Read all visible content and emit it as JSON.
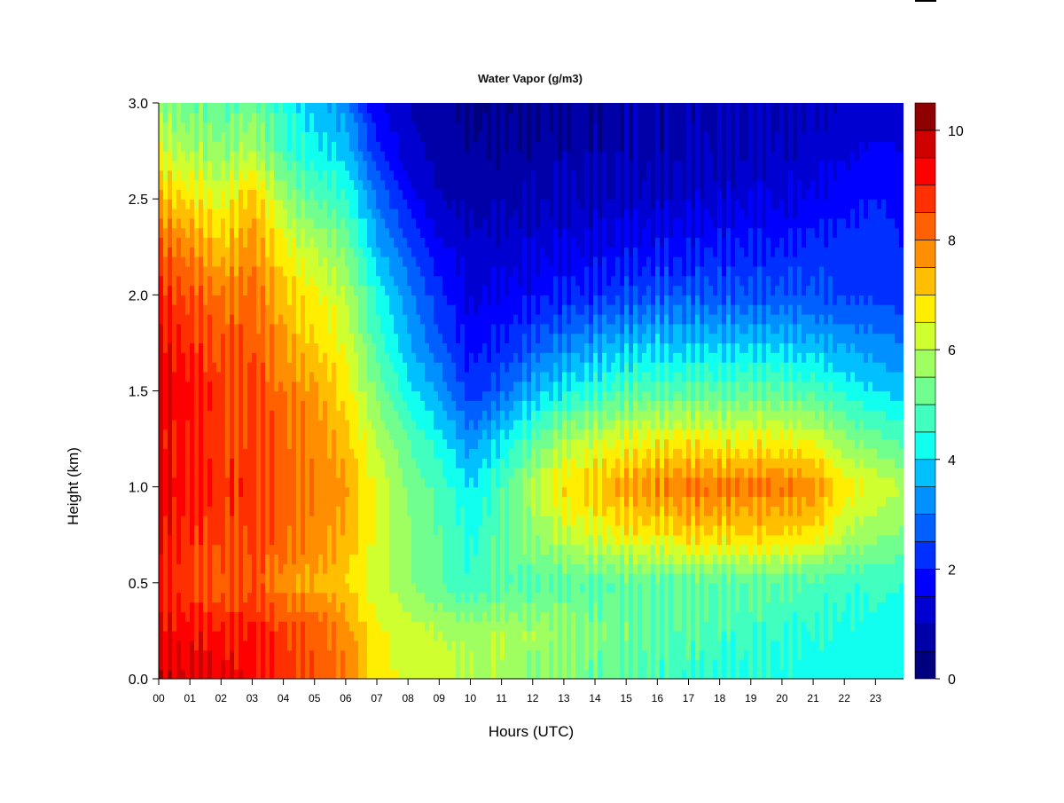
{
  "chart_data": {
    "type": "heatmap",
    "title": "Water Vapor (g/m3)",
    "xlabel": "Hours (UTC)",
    "ylabel": "Height (km)",
    "x_ticks": [
      "00",
      "01",
      "02",
      "03",
      "04",
      "05",
      "06",
      "07",
      "08",
      "09",
      "10",
      "11",
      "12",
      "13",
      "14",
      "15",
      "16",
      "17",
      "18",
      "19",
      "20",
      "21",
      "22",
      "23"
    ],
    "x_range": [
      0,
      23.9
    ],
    "y_ticks": [
      "0.0",
      "0.5",
      "1.0",
      "1.5",
      "2.0",
      "2.5",
      "3.0"
    ],
    "y_range": [
      0,
      3.0
    ],
    "colorbar": {
      "range": [
        0,
        10.5
      ],
      "levels": [
        0,
        0.5,
        1,
        1.5,
        2,
        2.5,
        3,
        3.5,
        4,
        4.5,
        5,
        5.5,
        6,
        6.5,
        7,
        7.5,
        8,
        8.5,
        9,
        9.5,
        10,
        10.5
      ],
      "tick_labels": [
        "0",
        "2",
        "4",
        "6",
        "8",
        "10"
      ],
      "colors": [
        "#00007f",
        "#0000a8",
        "#0000d0",
        "#0000ff",
        "#0030ff",
        "#0060ff",
        "#0090ff",
        "#00c0ff",
        "#10ffef",
        "#40ffbf",
        "#70ff8f",
        "#a0ff60",
        "#d0ff30",
        "#ffee00",
        "#ffbf00",
        "#ff8f00",
        "#ff6000",
        "#ff3000",
        "#ff0000",
        "#cf0000",
        "#8f0000"
      ]
    },
    "grid": false,
    "heights_km": [
      0.0,
      0.25,
      0.5,
      0.75,
      1.0,
      1.25,
      1.5,
      1.75,
      2.0,
      2.25,
      2.5,
      2.75,
      3.0
    ],
    "hours": [
      0,
      1,
      2,
      3,
      4,
      5,
      6,
      7,
      8,
      9,
      10,
      11,
      12,
      13,
      14,
      15,
      16,
      17,
      18,
      19,
      20,
      21,
      22,
      23,
      23.9
    ],
    "values": [
      [
        9.8,
        9.6,
        9.5,
        9.2,
        8.9,
        8.4,
        8.0,
        6.8,
        6.3,
        6.2,
        6.0,
        5.8,
        5.6,
        5.4,
        5.2,
        5.0,
        4.8,
        4.6,
        4.5,
        4.4,
        4.3,
        4.2,
        4.2,
        4.2,
        4.1
      ],
      [
        9.4,
        9.2,
        9.0,
        9.1,
        8.6,
        8.4,
        7.8,
        6.6,
        6.2,
        6.0,
        5.8,
        5.9,
        5.8,
        5.6,
        5.4,
        5.2,
        5.0,
        4.9,
        4.8,
        4.7,
        4.6,
        4.5,
        4.4,
        4.4,
        4.3
      ],
      [
        9.0,
        8.6,
        8.2,
        8.4,
        7.8,
        7.4,
        7.0,
        6.2,
        5.6,
        5.0,
        4.6,
        4.9,
        5.0,
        5.0,
        5.0,
        5.0,
        5.0,
        5.0,
        5.0,
        5.0,
        5.0,
        4.8,
        4.6,
        4.6,
        4.5
      ],
      [
        9.4,
        8.8,
        8.6,
        8.6,
        8.2,
        7.8,
        7.4,
        6.4,
        5.6,
        5.0,
        4.4,
        5.0,
        5.6,
        6.0,
        6.4,
        6.6,
        6.8,
        7.0,
        7.0,
        7.0,
        7.0,
        6.8,
        6.0,
        5.6,
        5.4
      ],
      [
        9.6,
        9.0,
        8.8,
        8.8,
        8.4,
        8.0,
        7.6,
        6.4,
        5.4,
        4.8,
        4.0,
        4.8,
        6.0,
        6.8,
        7.2,
        7.6,
        7.8,
        8.0,
        8.0,
        8.0,
        8.0,
        7.8,
        6.8,
        6.4,
        6.0
      ],
      [
        9.4,
        9.0,
        8.6,
        8.6,
        8.2,
        7.8,
        7.2,
        6.0,
        5.0,
        4.2,
        3.2,
        4.0,
        5.0,
        5.8,
        6.2,
        6.4,
        6.6,
        6.6,
        6.6,
        6.6,
        6.6,
        6.4,
        5.6,
        5.2,
        4.8
      ],
      [
        9.6,
        9.2,
        8.6,
        8.6,
        8.0,
        7.6,
        6.8,
        5.4,
        4.2,
        3.4,
        2.2,
        2.8,
        3.6,
        4.2,
        4.6,
        4.8,
        5.0,
        5.0,
        5.0,
        5.0,
        5.0,
        4.8,
        4.4,
        4.0,
        3.8
      ],
      [
        9.4,
        8.8,
        8.4,
        8.4,
        7.6,
        7.0,
        6.4,
        4.8,
        3.6,
        2.6,
        1.8,
        2.0,
        2.6,
        3.0,
        3.4,
        3.6,
        3.8,
        3.8,
        3.8,
        3.8,
        3.8,
        3.6,
        3.4,
        3.2,
        3.0
      ],
      [
        9.0,
        8.4,
        8.0,
        8.2,
        7.2,
        6.6,
        6.0,
        4.4,
        3.2,
        2.2,
        1.4,
        1.6,
        1.8,
        2.0,
        2.2,
        2.4,
        2.6,
        2.6,
        2.6,
        2.6,
        2.6,
        2.6,
        2.4,
        2.4,
        2.2
      ],
      [
        8.4,
        7.8,
        7.2,
        7.8,
        6.6,
        6.0,
        5.4,
        3.6,
        2.6,
        1.6,
        1.2,
        1.2,
        1.4,
        1.4,
        1.6,
        1.6,
        1.8,
        1.8,
        2.0,
        2.0,
        2.0,
        2.2,
        2.2,
        2.2,
        2.0
      ],
      [
        7.4,
        6.8,
        6.4,
        7.2,
        5.8,
        5.0,
        4.6,
        3.0,
        1.8,
        1.0,
        0.8,
        0.8,
        0.9,
        1.0,
        1.0,
        1.1,
        1.2,
        1.2,
        1.3,
        1.4,
        1.4,
        1.6,
        1.8,
        2.0,
        1.9
      ],
      [
        6.4,
        5.8,
        5.6,
        6.0,
        4.8,
        4.2,
        3.8,
        2.2,
        1.2,
        0.8,
        0.6,
        0.6,
        0.7,
        0.7,
        0.8,
        0.8,
        0.8,
        0.9,
        1.0,
        1.0,
        1.1,
        1.2,
        1.4,
        1.6,
        1.5
      ],
      [
        5.6,
        5.2,
        5.0,
        5.2,
        4.4,
        3.8,
        3.2,
        1.6,
        1.0,
        0.7,
        0.4,
        0.4,
        0.5,
        0.6,
        0.6,
        0.7,
        0.8,
        0.8,
        0.8,
        0.9,
        0.9,
        1.0,
        1.0,
        1.2,
        1.2
      ]
    ]
  }
}
